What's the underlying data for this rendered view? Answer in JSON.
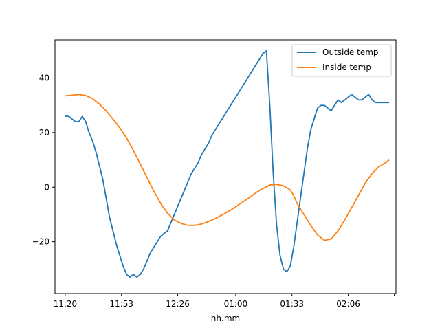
{
  "chart_data": {
    "type": "line",
    "title": "",
    "xlabel": "hh.mm",
    "ylabel": "",
    "xlim": [
      "11:14",
      "02:34"
    ],
    "ylim": [
      -39,
      54
    ],
    "x_ticks": [
      "11:20",
      "11:53",
      "12:26",
      "01:00",
      "01:33",
      "02:06",
      ""
    ],
    "y_ticks": [
      -20,
      0,
      20,
      40
    ],
    "grid": false,
    "legend_position": "top-right",
    "series": [
      {
        "name": "Outside temp",
        "color": "#1f77b4",
        "x": [
          "11:20",
          "11:22",
          "11:24",
          "11:26",
          "11:28",
          "11:30",
          "11:32",
          "11:34",
          "11:36",
          "11:38",
          "11:40",
          "11:42",
          "11:44",
          "11:46",
          "11:48",
          "11:50",
          "11:52",
          "11:54",
          "11:56",
          "11:58",
          "12:00",
          "12:02",
          "12:04",
          "12:06",
          "12:08",
          "12:10",
          "12:12",
          "12:14",
          "12:16",
          "12:18",
          "12:20",
          "12:22",
          "12:24",
          "12:26",
          "12:28",
          "12:30",
          "12:32",
          "12:34",
          "12:36",
          "12:38",
          "12:40",
          "12:42",
          "12:44",
          "12:46",
          "12:48",
          "12:50",
          "12:52",
          "12:54",
          "12:56",
          "12:58",
          "01:00",
          "01:02",
          "01:04",
          "01:06",
          "01:08",
          "01:10",
          "01:12",
          "01:14",
          "01:16",
          "01:18",
          "01:20",
          "01:22",
          "01:24",
          "01:26",
          "01:28",
          "01:30",
          "01:32",
          "01:34",
          "01:36",
          "01:38",
          "01:40",
          "01:42",
          "01:44",
          "01:46",
          "01:48",
          "01:50",
          "01:52",
          "01:54",
          "01:56",
          "01:58",
          "02:00",
          "02:02",
          "02:04",
          "02:06",
          "02:08",
          "02:10",
          "02:12",
          "02:14",
          "02:16",
          "02:18",
          "02:20",
          "02:22",
          "02:24",
          "02:26",
          "02:28",
          "02:30"
        ],
        "values": [
          26,
          26,
          25,
          24,
          24,
          26,
          24,
          20,
          17,
          13,
          8,
          3,
          -4,
          -11,
          -16,
          -21,
          -25,
          -29,
          -32,
          -33,
          -32,
          -33,
          -32,
          -30,
          -27,
          -24,
          -22,
          -20,
          -18,
          -17,
          -16,
          -13,
          -10,
          -7,
          -4,
          -1,
          2,
          5,
          7,
          9,
          12,
          14,
          16,
          19,
          21,
          23,
          25,
          27,
          29,
          31,
          33,
          35,
          37,
          39,
          41,
          43,
          45,
          47,
          49,
          50,
          30,
          5,
          -14,
          -25,
          -30,
          -31,
          -29,
          -22,
          -13,
          -4,
          5,
          14,
          21,
          25,
          29,
          30,
          30,
          29,
          28,
          30,
          32,
          31,
          32,
          33,
          34,
          33,
          32,
          32,
          33,
          34,
          32,
          31,
          31,
          31,
          31,
          31
        ],
        "sparse_note": ""
      },
      {
        "name": "Inside temp",
        "color": "#ff7f0e",
        "x": [
          "11:20",
          "11:24",
          "11:28",
          "11:32",
          "11:36",
          "11:40",
          "11:44",
          "11:48",
          "11:52",
          "11:56",
          "12:00",
          "12:04",
          "12:08",
          "12:12",
          "12:16",
          "12:20",
          "12:24",
          "12:28",
          "12:32",
          "12:36",
          "12:40",
          "12:44",
          "12:48",
          "12:52",
          "12:56",
          "01:00",
          "01:04",
          "01:08",
          "01:12",
          "01:16",
          "01:20",
          "01:24",
          "01:28",
          "01:32",
          "01:34",
          "01:36",
          "01:40",
          "01:44",
          "01:48",
          "01:52",
          "01:56",
          "02:00",
          "02:04",
          "02:08",
          "02:12",
          "02:16",
          "02:20",
          "02:24",
          "02:28",
          "02:30"
        ],
        "values": [
          33.5,
          33.7,
          34,
          33.6,
          32.5,
          30.5,
          28,
          25,
          21.8,
          18,
          13.5,
          8.5,
          3.5,
          -1.5,
          -6,
          -9.5,
          -12,
          -13.3,
          -14,
          -14,
          -13.5,
          -12.6,
          -11.5,
          -10.2,
          -8.8,
          -7.2,
          -5.5,
          -3.8,
          -2,
          -0.5,
          0.8,
          1,
          0.5,
          -1,
          -3,
          -6,
          -10,
          -14,
          -17.5,
          -19.5,
          -19,
          -16,
          -12,
          -7.5,
          -3,
          1.5,
          5,
          7.5,
          9,
          10
        ]
      }
    ]
  }
}
